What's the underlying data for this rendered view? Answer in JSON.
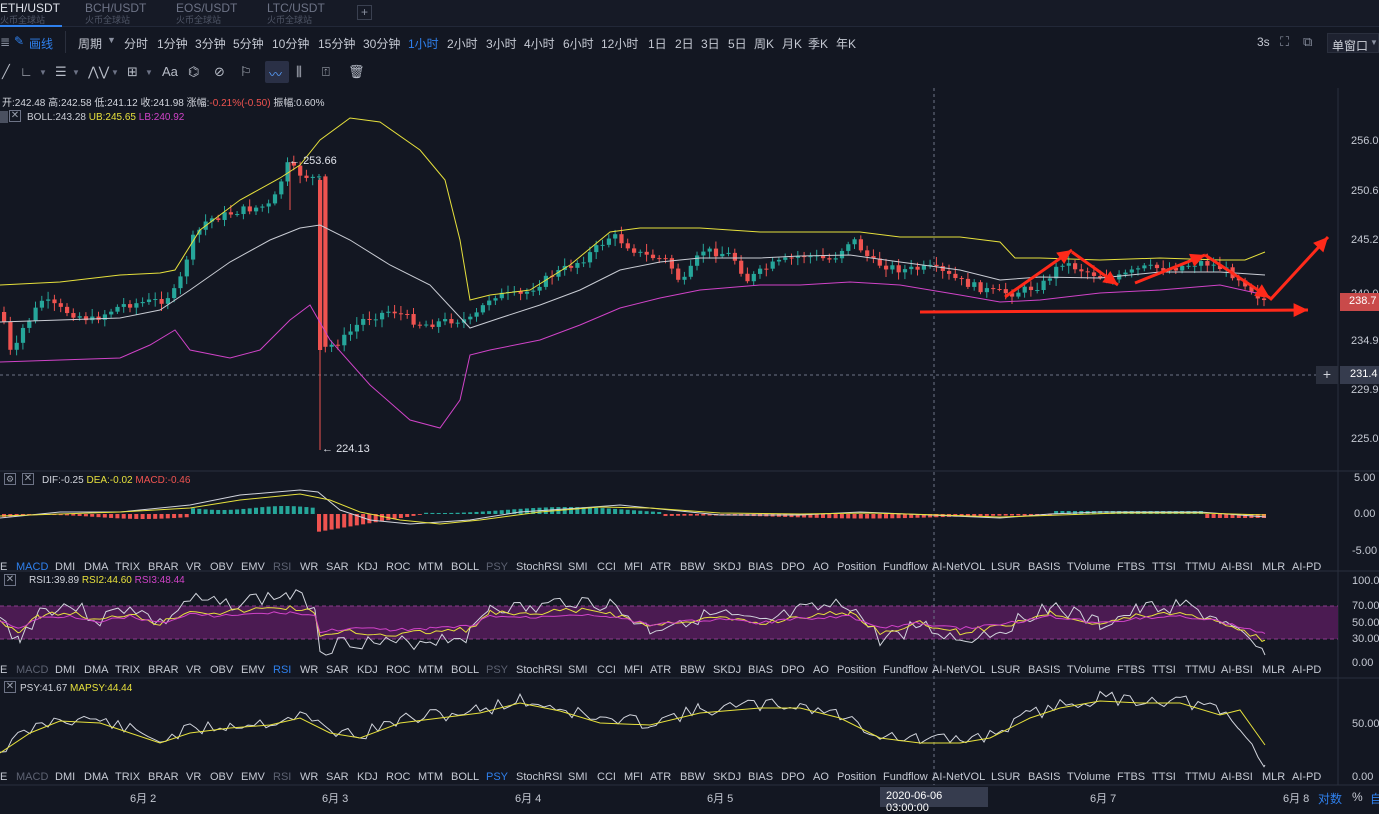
{
  "tabs": [
    {
      "pair": "ETH/USDT",
      "exchange": "火币全球站",
      "active": true
    },
    {
      "pair": "BCH/USDT",
      "exchange": "火币全球站",
      "active": false
    },
    {
      "pair": "EOS/USDT",
      "exchange": "火币全球站",
      "active": false
    },
    {
      "pair": "LTC/USDT",
      "exchange": "火币全球站",
      "active": false
    }
  ],
  "add_tab": "+",
  "toolbar": {
    "draw_label": "画线",
    "period_label": "周期",
    "periods": [
      "分时",
      "1分钟",
      "3分钟",
      "5分钟",
      "10分钟",
      "15分钟",
      "30分钟",
      "1小时",
      "2小时",
      "3小时",
      "4小时",
      "6小时",
      "12小时",
      "1日",
      "2日",
      "3日",
      "5日",
      "周K",
      "月K",
      "季K",
      "年K"
    ],
    "active_period": "1小时",
    "refresh": "3s",
    "window_mode": "单窗口"
  },
  "drawing_tools": [
    "line-tool-icon",
    "angle-tool-icon",
    "parallel-tool-icon",
    "wave-tool-icon",
    "crosshair-tool-icon",
    "text-tool-icon",
    "pattern-tool-icon",
    "magnet-icon",
    "ruler-icon",
    "brush-icon",
    "fib-icon",
    "lock-icon",
    "trash-icon"
  ],
  "text_tool": "Aa",
  "ohlc": {
    "open_label": "开:",
    "open": "242.48",
    "high_label": "高:",
    "high": "242.58",
    "low_label": "低:",
    "low": "241.12",
    "close_label": "收:",
    "close": "241.98",
    "change_label": "涨幅:",
    "change": "-0.21%(-0.50)",
    "amp_label": "振幅:",
    "amp": "0.60%"
  },
  "boll": {
    "label": "BOLL:243.28",
    "ub": "UB:245.65",
    "lb": "LB:240.92"
  },
  "macd": {
    "dif": "DIF:-0.25",
    "dea": "DEA:-0.02",
    "macd": "MACD:-0.46"
  },
  "rsi": {
    "rsi1": "RSI1:39.89",
    "rsi2": "RSI2:44.60",
    "rsi3": "RSI3:48.44"
  },
  "psy": {
    "psy": "PSY:41.67",
    "mapsy": "MAPSY:44.44"
  },
  "price_axis": [
    "256.0",
    "250.6",
    "245.2",
    "240.0",
    "234.9",
    "229.9",
    "225.0"
  ],
  "current_price": "238.7",
  "crosshair_price": "231.4",
  "crosshair_time": "2020-06-06 03:00:00",
  "annotations": {
    "high": "253.66",
    "low": "224.13"
  },
  "macd_axis": [
    "5.00",
    "0.00",
    "-5.00"
  ],
  "rsi_axis": [
    "100.00",
    "70.00",
    "50.00",
    "30.00",
    "0.00"
  ],
  "psy_axis": [
    "50.00",
    "0.00"
  ],
  "date_axis": [
    "6月 2",
    "6月 3",
    "6月 4",
    "6月 5",
    "6月 7",
    "6月 8"
  ],
  "bottom_right": {
    "log": "对数",
    "pct": "%"
  },
  "indicators": [
    "E",
    "MACD",
    "DMI",
    "DMA",
    "TRIX",
    "BRAR",
    "VR",
    "OBV",
    "EMV",
    "RSI",
    "WR",
    "SAR",
    "KDJ",
    "ROC",
    "MTM",
    "BOLL",
    "PSY",
    "StochRSI",
    "SMI",
    "CCI",
    "MFI",
    "ATR",
    "BBW",
    "SKDJ",
    "BIAS",
    "DPO",
    "AO",
    "Position",
    "Fundflow",
    "AI-NetVOL",
    "LSUR",
    "BASIS",
    "TVolume",
    "FTBS",
    "TTSI",
    "TTMU",
    "AI-BSI",
    "MLR",
    "AI-PD"
  ],
  "colors": {
    "up": "#26a69a",
    "down": "#ef5350",
    "upper": "#e6e03c",
    "mid": "#c9ccd4",
    "lower": "#d043c8",
    "accent": "#2f80ed",
    "arrow": "#ff2a1a"
  }
}
